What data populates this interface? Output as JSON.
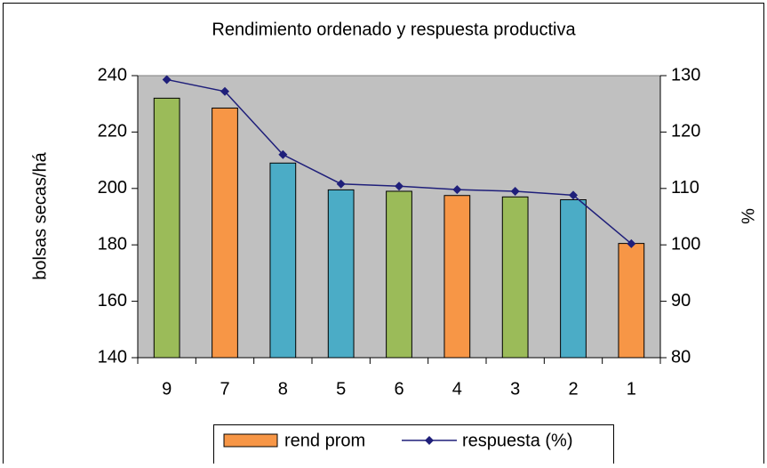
{
  "chart_data": {
    "type": "bar",
    "title": "Rendimiento ordenado y respuesta productiva",
    "y_label": "bolsas secas/há",
    "y2_label": "%",
    "categories": [
      "9",
      "7",
      "8",
      "5",
      "6",
      "4",
      "3",
      "2",
      "1"
    ],
    "series": [
      {
        "name": "rend prom",
        "type": "bar",
        "color": "#f79646",
        "colors": [
          "#9bbb59",
          "#f79646",
          "#4bacc6",
          "#4bacc6",
          "#9bbb59",
          "#f79646",
          "#9bbb59",
          "#4bacc6",
          "#f79646"
        ],
        "values": [
          232,
          228.5,
          209,
          199.5,
          199,
          197.5,
          197,
          196,
          180.5
        ]
      },
      {
        "name": "respuesta (%)",
        "type": "line",
        "axis": "y2",
        "color": "#1f1f7a",
        "values": [
          129.3,
          127.2,
          116,
          110.8,
          110.4,
          109.8,
          109.5,
          108.8,
          100.2
        ]
      }
    ],
    "ylim": [
      140,
      240
    ],
    "yticks": [
      140,
      160,
      180,
      200,
      220,
      240
    ],
    "y2lim": [
      80,
      130
    ],
    "y2ticks": [
      80,
      90,
      100,
      110,
      120,
      130
    ],
    "grid": false,
    "plot_background": "#c0c0c0",
    "legend": "bottom"
  }
}
